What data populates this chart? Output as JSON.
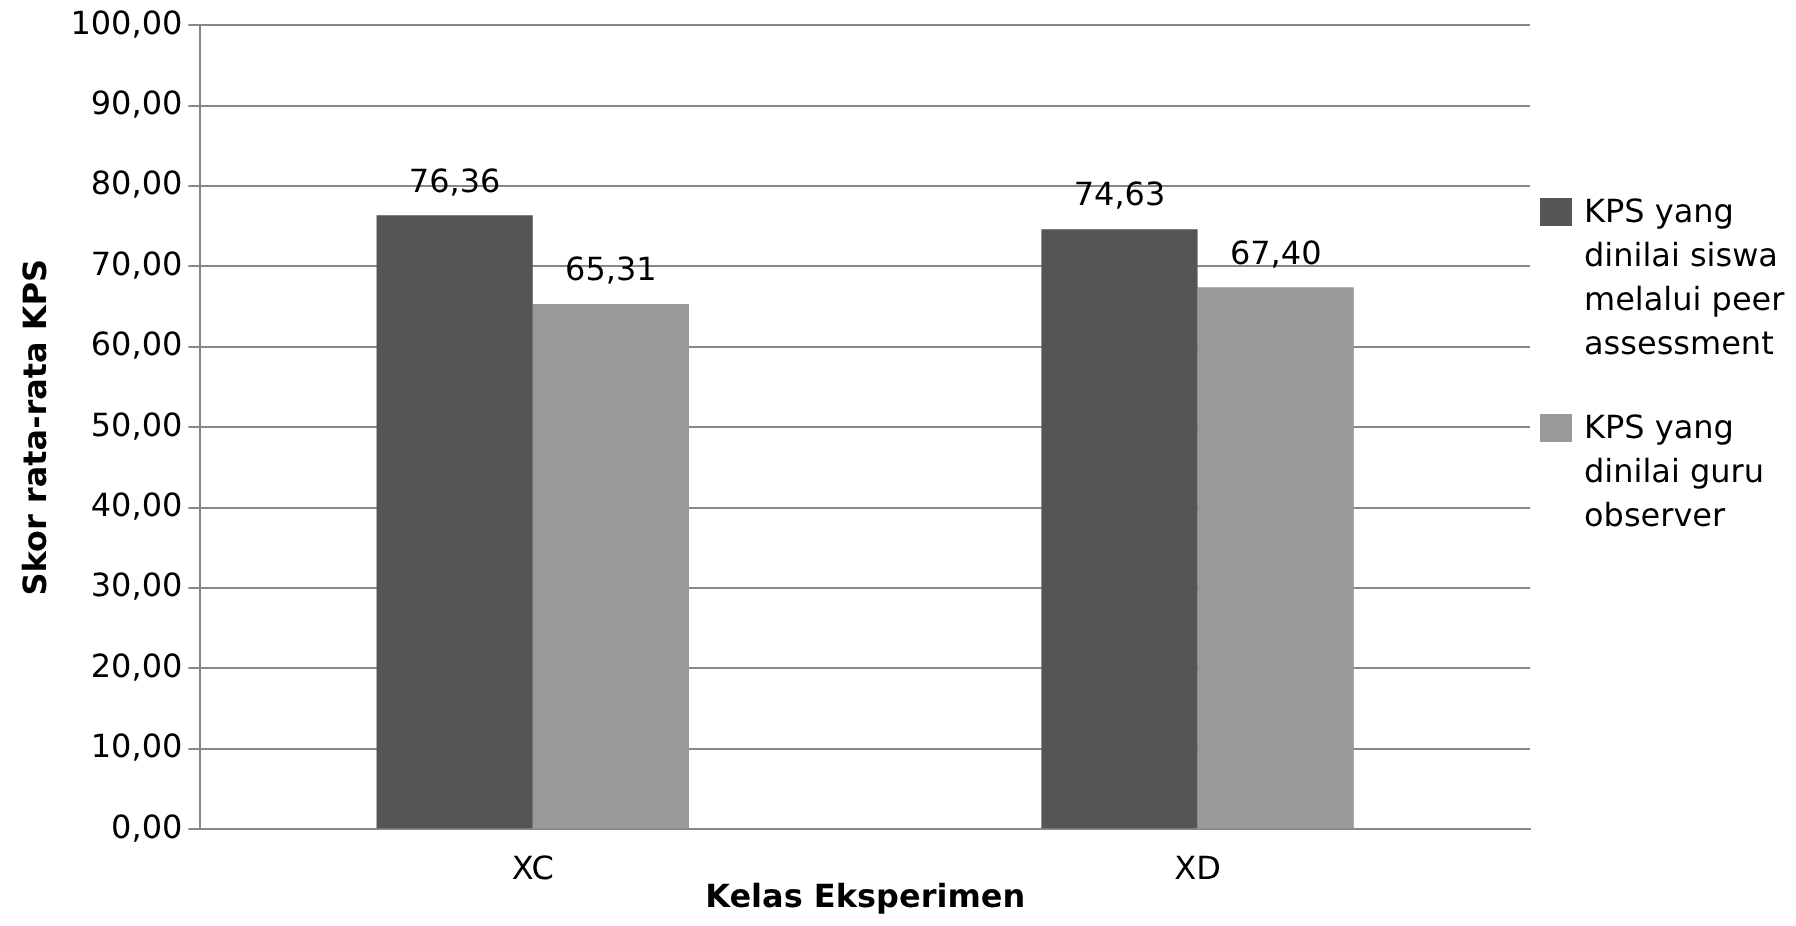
{
  "chart_data": {
    "type": "bar",
    "xlabel": "Kelas Eksperimen",
    "ylabel": "Skor rata-rata KPS",
    "categories": [
      "XC",
      "XD"
    ],
    "series": [
      {
        "name": "KPS yang dinilai siswa melalui peer assessment",
        "color": "#555555",
        "values": [
          76.36,
          74.63
        ],
        "value_labels": [
          "76,36",
          "74,63"
        ]
      },
      {
        "name": "KPS yang dinilai guru observer",
        "color": "#999999",
        "values": [
          65.31,
          67.4
        ],
        "value_labels": [
          "65,31",
          "67,40"
        ]
      }
    ],
    "ylim": [
      0,
      100
    ],
    "yticks": [
      {
        "value": 0,
        "label": "0,00"
      },
      {
        "value": 10,
        "label": "10,00"
      },
      {
        "value": 20,
        "label": "20,00"
      },
      {
        "value": 30,
        "label": "30,00"
      },
      {
        "value": 40,
        "label": "40,00"
      },
      {
        "value": 50,
        "label": "50,00"
      },
      {
        "value": 60,
        "label": "60,00"
      },
      {
        "value": 70,
        "label": "70,00"
      },
      {
        "value": 80,
        "label": "80,00"
      },
      {
        "value": 90,
        "label": "90,00"
      },
      {
        "value": 100,
        "label": "100,00"
      }
    ],
    "grid": "y",
    "legend": "right"
  }
}
